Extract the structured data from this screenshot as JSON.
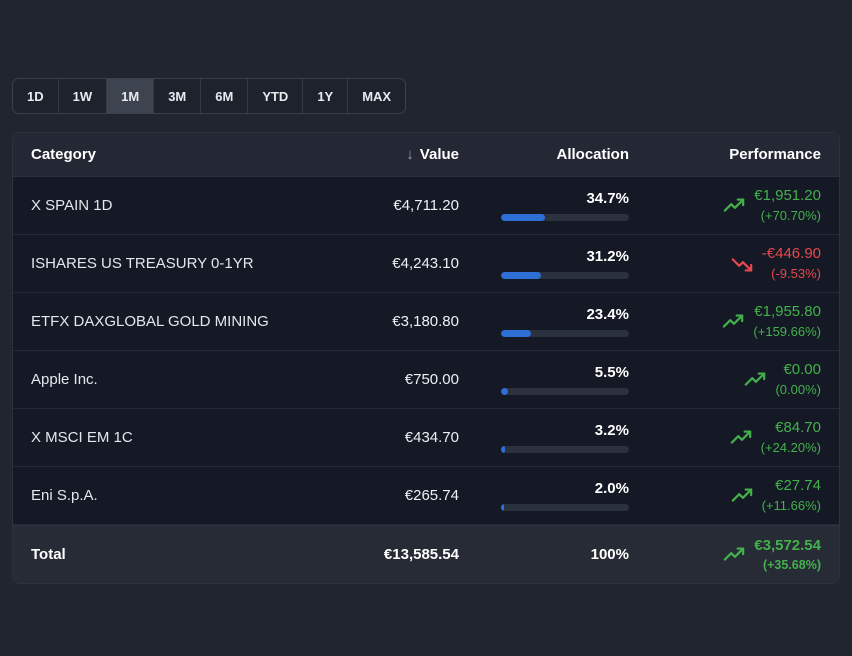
{
  "colors": {
    "positive_green": "#44b04c",
    "negative_red": "#e5484d",
    "allocation_blue": "#2e6fd6"
  },
  "tabs": {
    "items": [
      {
        "label": "1D",
        "selected": false
      },
      {
        "label": "1W",
        "selected": false
      },
      {
        "label": "1M",
        "selected": true
      },
      {
        "label": "3M",
        "selected": false
      },
      {
        "label": "6M",
        "selected": false
      },
      {
        "label": "YTD",
        "selected": false
      },
      {
        "label": "1Y",
        "selected": false
      },
      {
        "label": "MAX",
        "selected": false
      }
    ]
  },
  "table": {
    "headers": {
      "category": "Category",
      "sort_icon": "↓",
      "value": "Value",
      "allocation": "Allocation",
      "performance": "Performance"
    },
    "rows": [
      {
        "category": "X SPAIN 1D",
        "value": "€4,711.20",
        "allocation_pct": "34.7%",
        "allocation_value": 34.7,
        "perf_amount": "€1,951.20",
        "perf_pct": "(+70.70%)",
        "trend": "up"
      },
      {
        "category": "ISHARES US TREASURY 0-1YR",
        "value": "€4,243.10",
        "allocation_pct": "31.2%",
        "allocation_value": 31.2,
        "perf_amount": "-€446.90",
        "perf_pct": "(-9.53%)",
        "trend": "down"
      },
      {
        "category": "ETFX DAXGLOBAL GOLD MINING",
        "value": "€3,180.80",
        "allocation_pct": "23.4%",
        "allocation_value": 23.4,
        "perf_amount": "€1,955.80",
        "perf_pct": "(+159.66%)",
        "trend": "up"
      },
      {
        "category": "Apple Inc.",
        "value": "€750.00",
        "allocation_pct": "5.5%",
        "allocation_value": 5.5,
        "perf_amount": "€0.00",
        "perf_pct": "(0.00%)",
        "trend": "up"
      },
      {
        "category": "X MSCI EM 1C",
        "value": "€434.70",
        "allocation_pct": "3.2%",
        "allocation_value": 3.2,
        "perf_amount": "€84.70",
        "perf_pct": "(+24.20%)",
        "trend": "up"
      },
      {
        "category": "Eni S.p.A.",
        "value": "€265.74",
        "allocation_pct": "2.0%",
        "allocation_value": 2.0,
        "perf_amount": "€27.74",
        "perf_pct": "(+11.66%)",
        "trend": "up"
      }
    ],
    "total": {
      "category": "Total",
      "value": "€13,585.54",
      "allocation_pct": "100%",
      "perf_amount": "€3,572.54",
      "perf_pct": "(+35.68%)",
      "trend": "up"
    }
  }
}
